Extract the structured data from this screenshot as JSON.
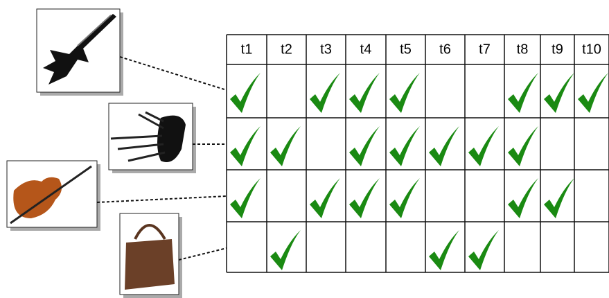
{
  "table": {
    "headers": [
      "t1",
      "t2",
      "t3",
      "t4",
      "t5",
      "t6",
      "t7",
      "t8",
      "t9",
      "t10"
    ],
    "rows": [
      [
        true,
        false,
        true,
        true,
        true,
        false,
        false,
        true,
        true,
        true
      ],
      [
        true,
        true,
        false,
        true,
        true,
        true,
        true,
        true,
        false,
        false
      ],
      [
        true,
        false,
        true,
        true,
        true,
        false,
        false,
        true,
        true,
        false
      ],
      [
        false,
        true,
        false,
        false,
        false,
        true,
        true,
        false,
        false,
        false
      ]
    ]
  }
}
